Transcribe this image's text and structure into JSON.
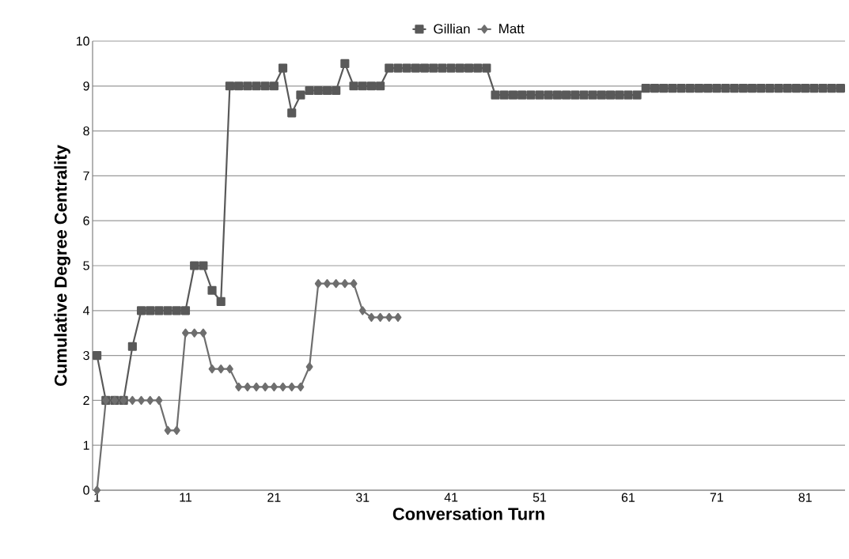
{
  "chart_data": {
    "type": "line",
    "xlabel": "Conversation Turn",
    "ylabel": "Cumulative Degree Centrality",
    "categories": [
      "1",
      null,
      null,
      null,
      null,
      null,
      null,
      null,
      null,
      null,
      "11",
      null,
      null,
      null,
      null,
      null,
      null,
      null,
      null,
      null,
      "21",
      null,
      null,
      null,
      null,
      null,
      null,
      null,
      null,
      null,
      "31",
      null,
      null,
      null,
      null,
      null,
      null,
      null,
      null,
      null,
      "41",
      null,
      null,
      null,
      null,
      null,
      null,
      null,
      null,
      null,
      "51",
      null,
      null,
      null,
      null,
      null,
      null,
      null,
      null,
      null,
      "61",
      null,
      null,
      null,
      null,
      null,
      null,
      null,
      null,
      null,
      "71",
      null,
      null,
      null,
      null,
      null,
      null,
      null,
      null,
      null,
      "81",
      null,
      null,
      null,
      null
    ],
    "series": [
      {
        "name": "Gillian",
        "color": "#595959",
        "marker": "square",
        "values": [
          3,
          2,
          2,
          2,
          3.2,
          4,
          4,
          4,
          4,
          4,
          4,
          5,
          5,
          4.45,
          4.2,
          9,
          9,
          9,
          9,
          9,
          9,
          9.4,
          8.4,
          8.8,
          8.9,
          8.9,
          8.9,
          8.9,
          9.5,
          9,
          9,
          9,
          9,
          9.4,
          9.4,
          9.4,
          9.4,
          9.4,
          9.4,
          9.4,
          9.4,
          9.4,
          9.4,
          9.4,
          9.4,
          8.8,
          8.8,
          8.8,
          8.8,
          8.8,
          8.8,
          8.8,
          8.8,
          8.8,
          8.8,
          8.8,
          8.8,
          8.8,
          8.8,
          8.8,
          8.8,
          8.8,
          8.95,
          8.95,
          8.95,
          8.95,
          8.95,
          8.95,
          8.95,
          8.95,
          8.95,
          8.95,
          8.95,
          8.95,
          8.95,
          8.95,
          8.95,
          8.95,
          8.95,
          8.95,
          8.95,
          8.95,
          8.95,
          8.95,
          8.95
        ]
      },
      {
        "name": "Matt",
        "color": "#6e6e6e",
        "marker": "diamond",
        "values": [
          0,
          2,
          2,
          2,
          2,
          2,
          2,
          2,
          1.33,
          1.33,
          3.5,
          3.5,
          3.5,
          2.7,
          2.7,
          2.7,
          2.3,
          2.3,
          2.3,
          2.3,
          2.3,
          2.3,
          2.3,
          2.3,
          2.75,
          4.6,
          4.6,
          4.6,
          4.6,
          4.6,
          4.0,
          3.85,
          3.85,
          3.85,
          3.85,
          null,
          null,
          null,
          null,
          null,
          null,
          null,
          null,
          null,
          null,
          null,
          null,
          null,
          null,
          null,
          null,
          null,
          null,
          null,
          null,
          null,
          null,
          null,
          null,
          null,
          null,
          null,
          null,
          null,
          null,
          null,
          null,
          null,
          null,
          null,
          null,
          null,
          null,
          null,
          null,
          null,
          null,
          null,
          null,
          null,
          null,
          null,
          null,
          null,
          null
        ]
      }
    ],
    "ylim": [
      0,
      10
    ],
    "yticks": [
      0,
      1,
      2,
      3,
      4,
      5,
      6,
      7,
      8,
      9,
      10
    ],
    "grid": "y",
    "legend": "top",
    "line_style": "solid"
  }
}
